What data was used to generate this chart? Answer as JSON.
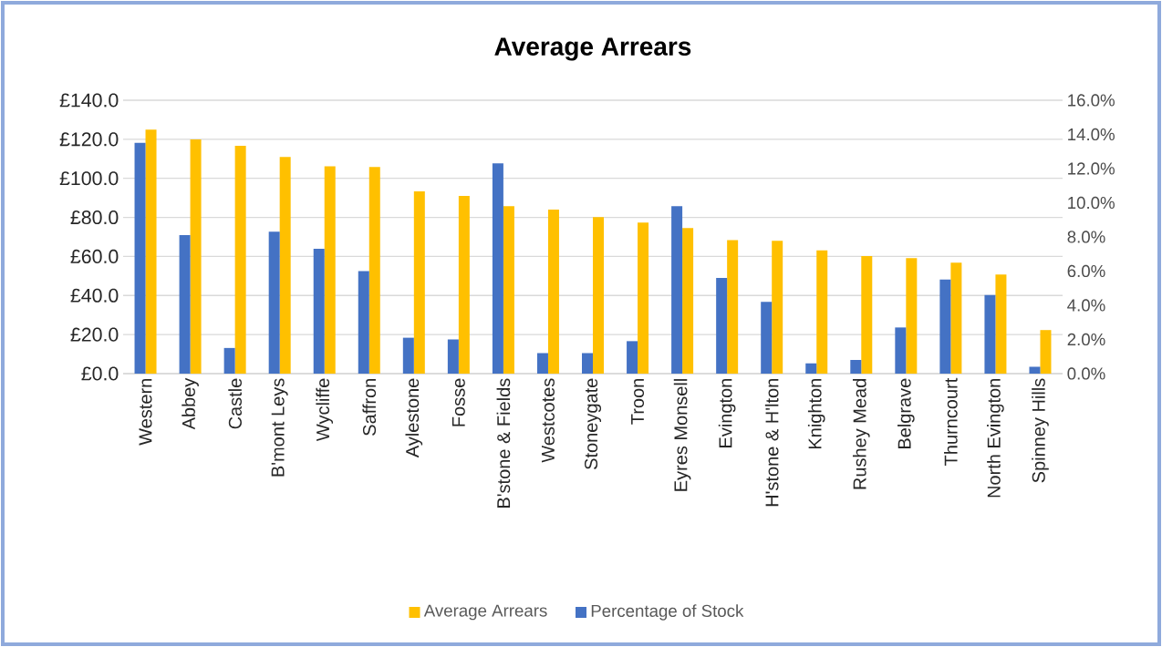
{
  "chart_data": {
    "type": "bar",
    "title": "Average Arrears",
    "categories": [
      "Western",
      "Abbey",
      "Castle",
      "B'mont Leys",
      "Wycliffe",
      "Saffron",
      "Aylestone",
      "Fosse",
      "B'stone & Fields",
      "Westcotes",
      "Stoneygate",
      "Troon",
      "Eyres Monsell",
      "Evington",
      "H'stone & H'lton",
      "Knighton",
      "Rushey Mead",
      "Belgrave",
      "Thurncourt",
      "North Evington",
      "Spinney Hills"
    ],
    "series": [
      {
        "name": "Average Arrears",
        "color": "#ffc000",
        "values": [
          125.0,
          119.9,
          116.7,
          111.0,
          106.2,
          105.8,
          93.3,
          91.0,
          85.7,
          84.0,
          80.1,
          77.3,
          74.5,
          68.4,
          68.0,
          63.1,
          60.2,
          59.1,
          56.8,
          50.7,
          22.3
        ]
      },
      {
        "name": "Percentage of Stock",
        "color": "#4472c4",
        "axis": "y2",
        "values": [
          13.5,
          8.1,
          1.5,
          8.3,
          7.3,
          6.0,
          2.1,
          2.0,
          12.3,
          1.2,
          1.2,
          1.9,
          9.8,
          5.6,
          4.2,
          0.6,
          0.8,
          2.7,
          5.5,
          4.6,
          0.4
        ]
      }
    ],
    "ylim": [
      0,
      140
    ],
    "yticks": [
      {
        "value": 0,
        "label": "£0.0"
      },
      {
        "value": 20,
        "label": "£20.0"
      },
      {
        "value": 40,
        "label": "£40.0"
      },
      {
        "value": 60,
        "label": "£60.0"
      },
      {
        "value": 80,
        "label": "£80.0"
      },
      {
        "value": 100,
        "label": "£100.0"
      },
      {
        "value": 120,
        "label": "£120.0"
      },
      {
        "value": 140,
        "label": "£140.0"
      }
    ],
    "y2lim": [
      0,
      16
    ],
    "y2ticks": [
      {
        "value": 0,
        "label": "0.0%"
      },
      {
        "value": 2,
        "label": "2.0%"
      },
      {
        "value": 4,
        "label": "4.0%"
      },
      {
        "value": 6,
        "label": "6.0%"
      },
      {
        "value": 8,
        "label": "8.0%"
      },
      {
        "value": 10,
        "label": "10.0%"
      },
      {
        "value": 12,
        "label": "12.0%"
      },
      {
        "value": 14,
        "label": "14.0%"
      },
      {
        "value": 16,
        "label": "16.0%"
      }
    ],
    "grid": "y",
    "legend": "bottom"
  }
}
